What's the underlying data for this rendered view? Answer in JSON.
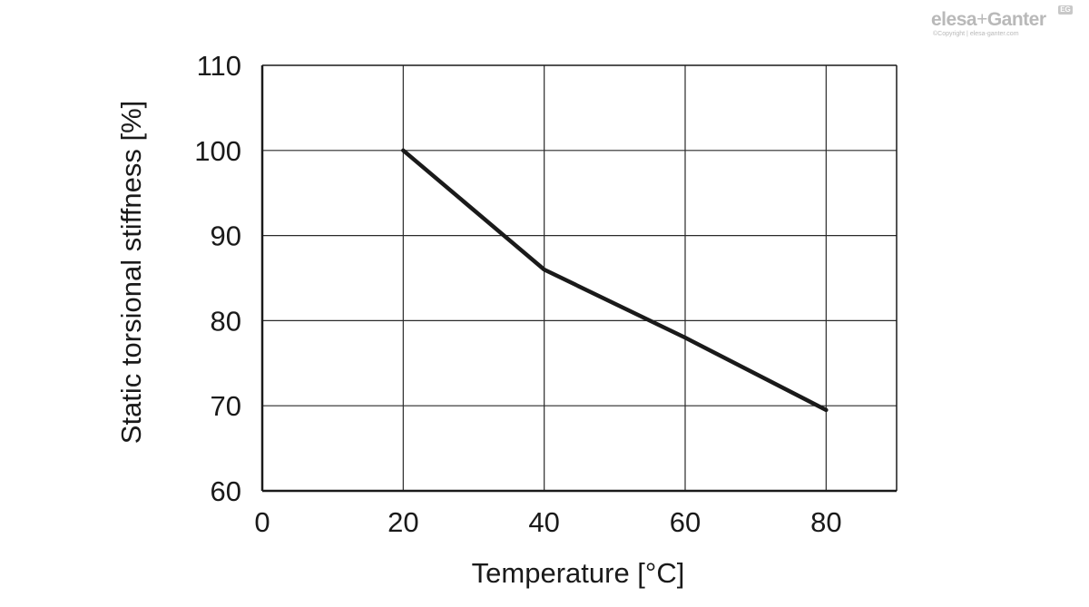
{
  "chart_data": {
    "type": "line",
    "title": "",
    "xlabel": "Temperature [°C]",
    "ylabel": "Static torsional stiffness [%]",
    "xlim": [
      0,
      90
    ],
    "ylim": [
      60,
      110
    ],
    "x_ticks": [
      0,
      20,
      40,
      60,
      80
    ],
    "y_ticks": [
      60,
      70,
      80,
      90,
      100,
      110
    ],
    "grid": true,
    "series": [
      {
        "name": "Static torsional stiffness",
        "x": [
          20,
          40,
          60,
          80
        ],
        "y": [
          100,
          86,
          78,
          69.5
        ]
      }
    ]
  },
  "logo": {
    "brand_left": "elesa",
    "plus": "+",
    "brand_right": "Ganter",
    "badge": "EG",
    "copyright": "©Copyright | elesa-ganter.com"
  }
}
